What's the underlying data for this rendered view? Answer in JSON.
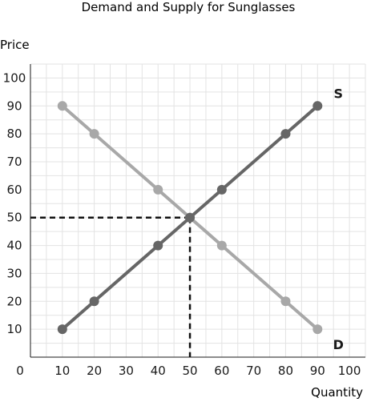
{
  "chart_data": {
    "type": "line",
    "title": "Demand and Supply for Sunglasses",
    "xlabel": "Quantity",
    "ylabel": "Price",
    "xlim": [
      0,
      105
    ],
    "ylim": [
      0,
      105
    ],
    "x_ticks": [
      10,
      20,
      30,
      40,
      50,
      60,
      70,
      80,
      90,
      100
    ],
    "y_ticks": [
      10,
      20,
      30,
      40,
      50,
      60,
      70,
      80,
      90,
      100
    ],
    "origin_label": "0",
    "grid": true,
    "series": [
      {
        "name": "S",
        "color": "#666666",
        "points": [
          [
            10,
            10
          ],
          [
            20,
            20
          ],
          [
            40,
            40
          ],
          [
            50,
            50
          ],
          [
            60,
            60
          ],
          [
            80,
            80
          ],
          [
            90,
            90
          ]
        ]
      },
      {
        "name": "D",
        "color": "#a8a8a8",
        "points": [
          [
            10,
            90
          ],
          [
            20,
            80
          ],
          [
            40,
            60
          ],
          [
            50,
            50
          ],
          [
            60,
            40
          ],
          [
            80,
            20
          ],
          [
            90,
            10
          ]
        ]
      }
    ],
    "equilibrium": {
      "x": 50,
      "y": 50,
      "line_style": "dashed"
    }
  }
}
